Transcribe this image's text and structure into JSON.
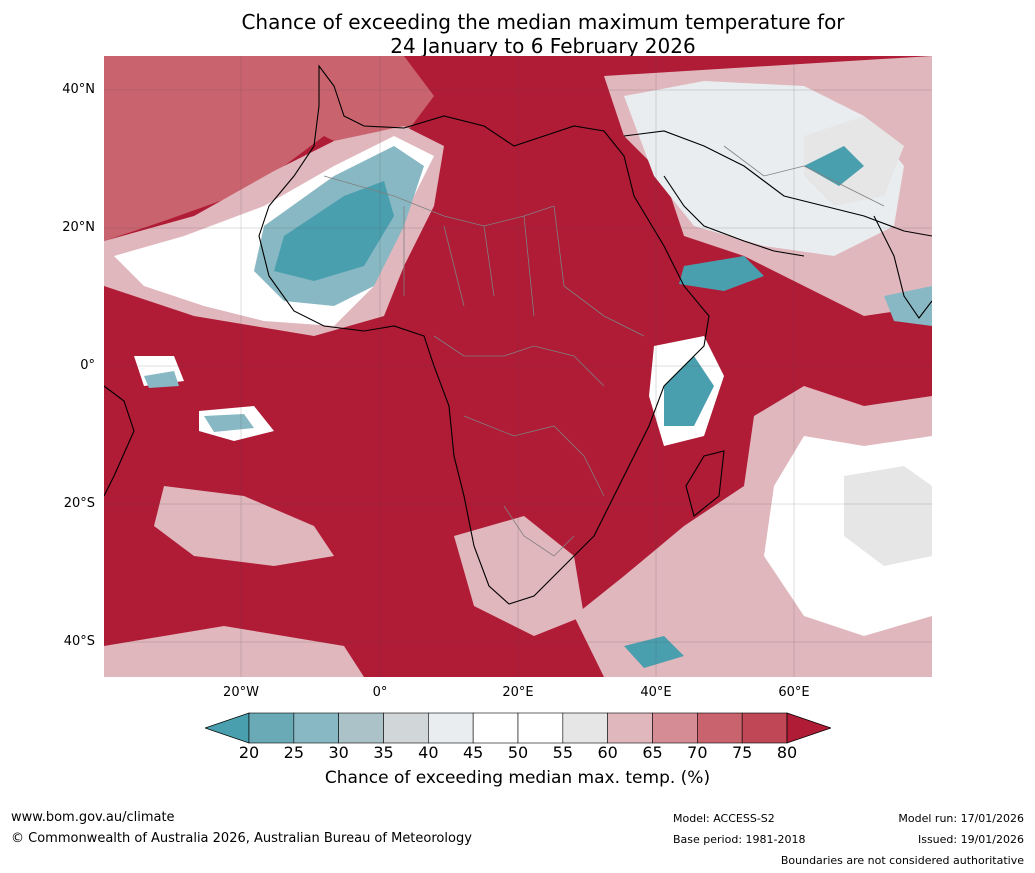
{
  "title": {
    "line1": "Chance of exceeding the median maximum temperature for",
    "line2": "24 January to 6 February 2026"
  },
  "axes": {
    "lat_labels": [
      "40°N",
      "20°N",
      "0°",
      "20°S",
      "40°S"
    ],
    "lon_labels": [
      "20°W",
      "0°",
      "20°E",
      "40°E",
      "60°E"
    ]
  },
  "legend": {
    "title": "Chance of exceeding median max. temp. (%)",
    "ticks": [
      "20",
      "25",
      "30",
      "35",
      "40",
      "45",
      "50",
      "55",
      "60",
      "65",
      "70",
      "75",
      "80"
    ],
    "colors": [
      "#4a9fae",
      "#6aaab7",
      "#88b8c3",
      "#abc3c8",
      "#d1d6d8",
      "#e9edef",
      "#ffffff",
      "#ffffff",
      "#e6e6e6",
      "#e0b7bd",
      "#d58c95",
      "#c9646f",
      "#c04755",
      "#b01b36"
    ]
  },
  "footer": {
    "site": "www.bom.gov.au/climate",
    "copyright": "© Commonwealth of Australia 2026, Australian Bureau of Meteorology",
    "model": "Model: ACCESS-S2",
    "base_period": "Base period: 1981-2018",
    "model_run": "Model run: 17/01/2026",
    "issued": "Issued: 19/01/2026",
    "disclaimer": "Boundaries are not considered authoritative"
  },
  "map_colors": {
    "ocean_hot": "#b01b36",
    "warm": "#c9646f",
    "mild": "#e0b7bd",
    "neutral": "#ffffff",
    "grey": "#e6e6e6",
    "cool": "#88b8c3",
    "cold": "#4a9fae",
    "coast": "#000000",
    "border": "#808080"
  }
}
